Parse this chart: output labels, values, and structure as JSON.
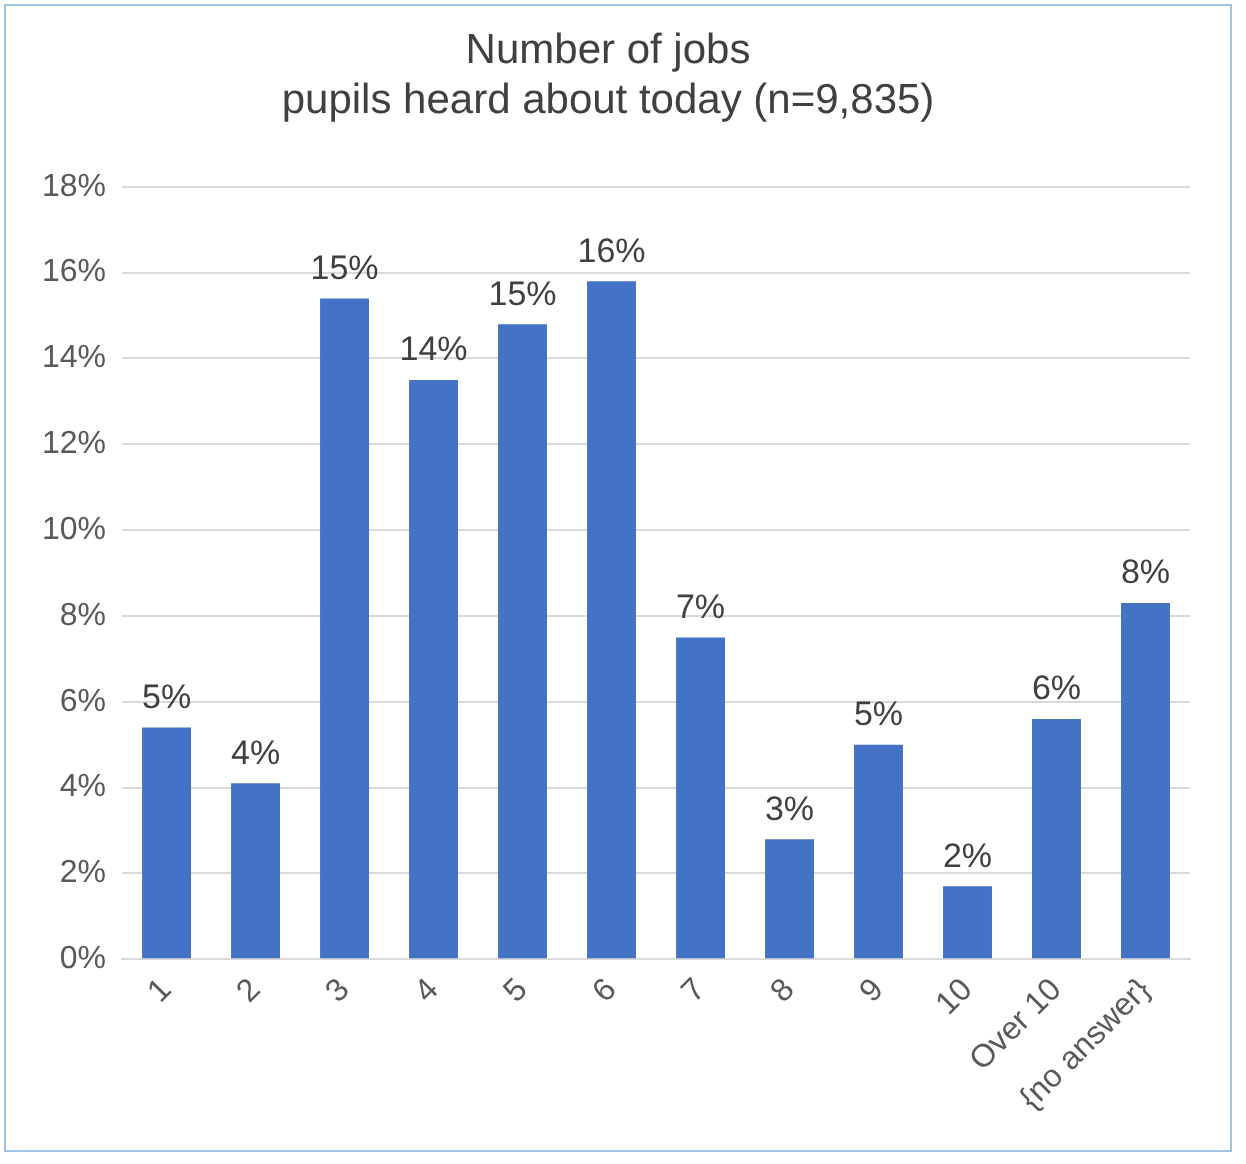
{
  "chart_data": {
    "type": "bar",
    "title": "Number of jobs\npupils heard about today (n=9,835)",
    "categories": [
      "1",
      "2",
      "3",
      "4",
      "5",
      "6",
      "7",
      "8",
      "9",
      "10",
      "Over 10",
      "{no answer}"
    ],
    "values": [
      5.4,
      4.1,
      15.4,
      13.5,
      14.8,
      15.8,
      7.5,
      2.8,
      5.0,
      1.7,
      5.6,
      8.3
    ],
    "value_labels": [
      "5%",
      "4%",
      "15%",
      "14%",
      "15%",
      "16%",
      "7%",
      "3%",
      "5%",
      "2%",
      "6%",
      "8%"
    ],
    "color": "#4472c4",
    "ylim": [
      0,
      18
    ],
    "yticks": [
      {
        "value": 0,
        "label": "0%"
      },
      {
        "value": 2,
        "label": "2%"
      },
      {
        "value": 4,
        "label": "4%"
      },
      {
        "value": 6,
        "label": "6%"
      },
      {
        "value": 8,
        "label": "8%"
      },
      {
        "value": 10,
        "label": "10%"
      },
      {
        "value": 12,
        "label": "12%"
      },
      {
        "value": 14,
        "label": "14%"
      },
      {
        "value": 16,
        "label": "16%"
      },
      {
        "value": 18,
        "label": "18%"
      }
    ],
    "grid": "y",
    "legend": false
  }
}
